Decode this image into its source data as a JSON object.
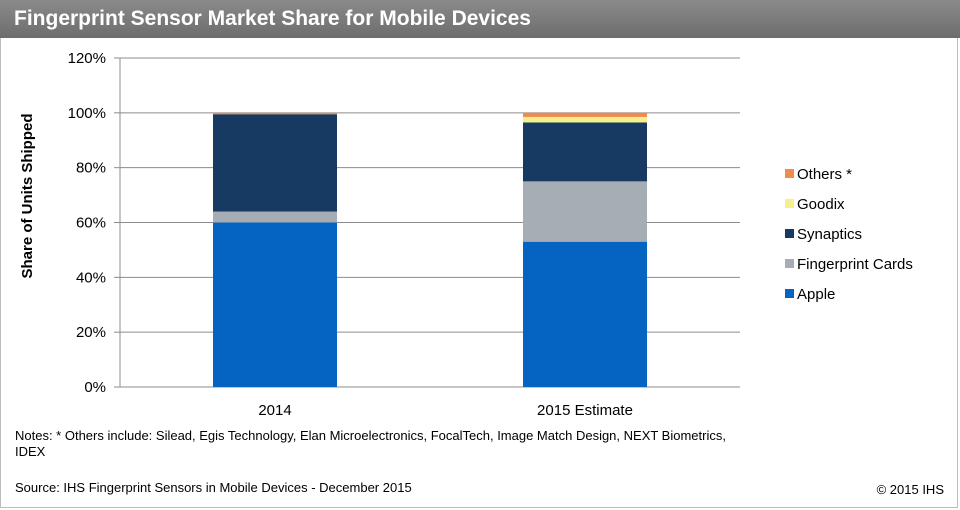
{
  "header": {
    "title": "Fingerprint Sensor Market Share for Mobile Devices"
  },
  "chart_data": {
    "type": "bar",
    "stacked": true,
    "title": "Fingerprint Sensor Market Share for Mobile Devices",
    "xlabel": "",
    "ylabel": "Share of Units Shipped",
    "ylim": [
      0,
      120
    ],
    "yticks": [
      0,
      20,
      40,
      60,
      80,
      100,
      120
    ],
    "ytick_labels": [
      "0%",
      "20%",
      "40%",
      "60%",
      "80%",
      "100%",
      "120%"
    ],
    "grid": true,
    "legend_position": "right",
    "categories": [
      "2014",
      "2015 Estimate"
    ],
    "series": [
      {
        "name": "Apple",
        "color": "#0563c1",
        "values": [
          60,
          53
        ]
      },
      {
        "name": "Fingerprint Cards",
        "color": "#a6adb4",
        "values": [
          4,
          22
        ]
      },
      {
        "name": "Synaptics",
        "color": "#173a63",
        "values": [
          35.5,
          21.5
        ]
      },
      {
        "name": "Goodix",
        "color": "#f6ef8c",
        "values": [
          0,
          2
        ]
      },
      {
        "name": "Others *",
        "color": "#f08b4c",
        "values": [
          0.5,
          1.5
        ]
      }
    ]
  },
  "notes": {
    "text": "Notes: * Others include: Silead, Egis Technology, Elan Microelectronics, FocalTech, Image Match Design, NEXT Biometrics, IDEX"
  },
  "source": {
    "text": "Source: IHS Fingerprint Sensors in Mobile Devices - December 2015"
  },
  "copyright": {
    "text": "© 2015 IHS"
  }
}
